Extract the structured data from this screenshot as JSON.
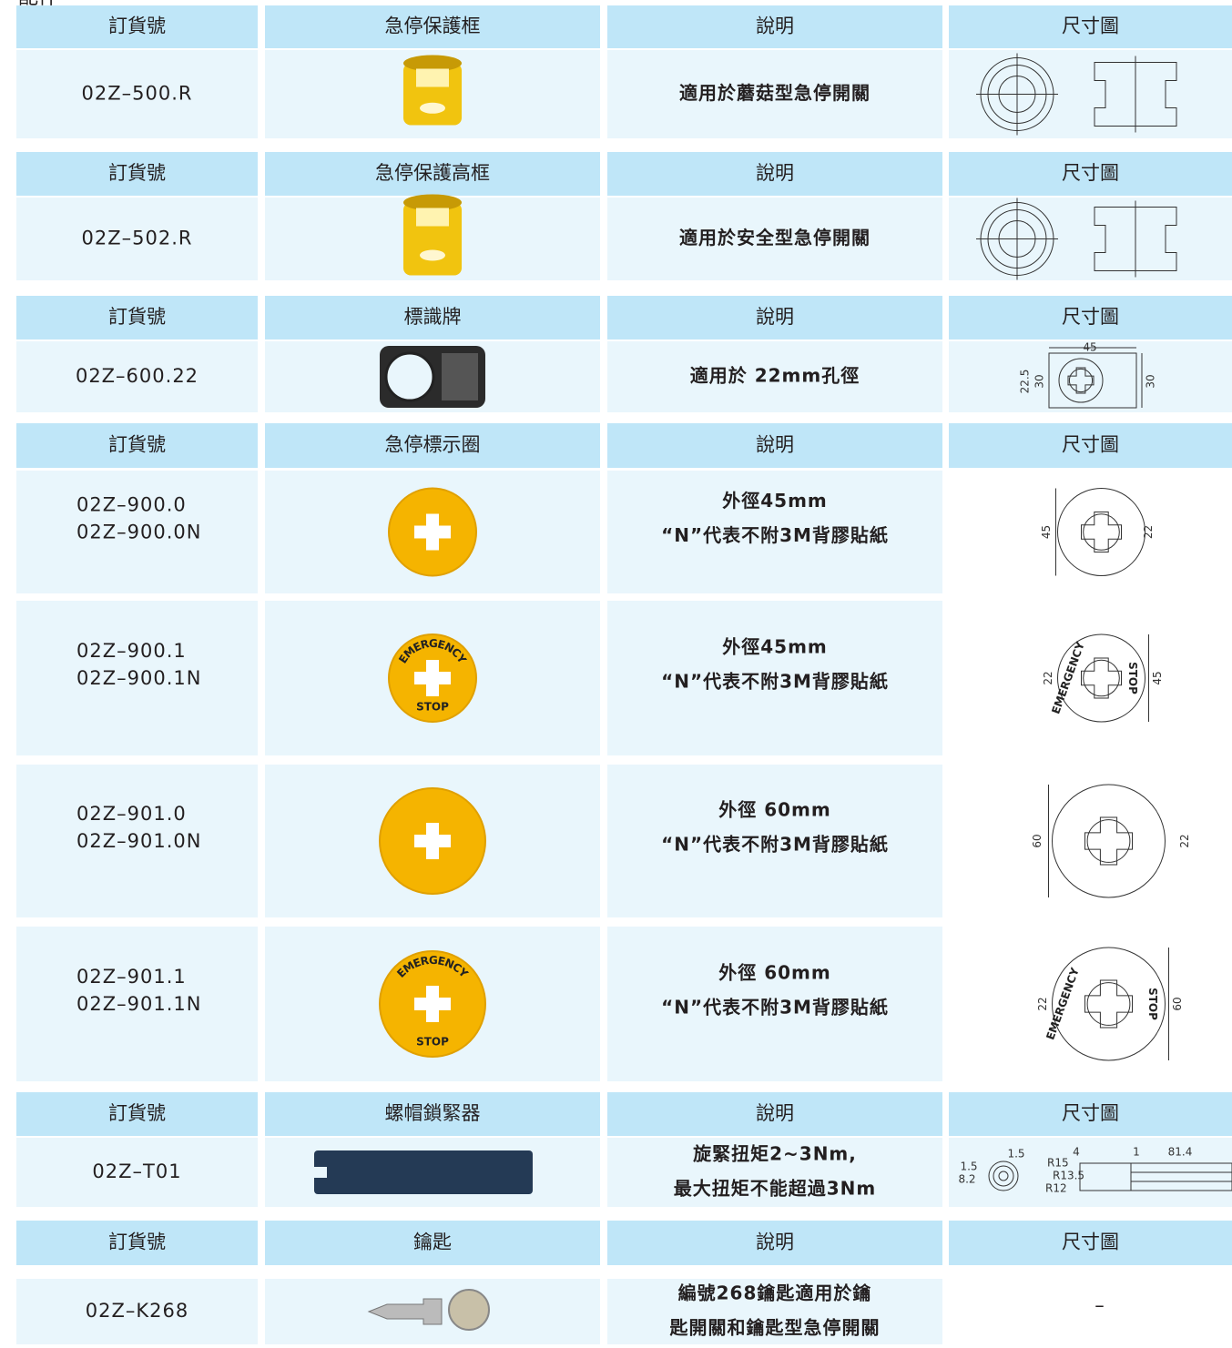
{
  "header": {
    "title": "配件"
  },
  "sections": [
    {
      "headers": [
        "訂貨號",
        "急停保護框",
        "說明",
        "尺寸圖"
      ],
      "rows": [
        {
          "codes": [
            "02Z–500.R"
          ],
          "description": [
            "適用於蘑菇型急停開關"
          ]
        }
      ]
    },
    {
      "headers": [
        "訂貨號",
        "急停保護高框",
        "說明",
        "尺寸圖"
      ],
      "rows": [
        {
          "codes": [
            "02Z–502.R"
          ],
          "description": [
            "適用於安全型急停開關"
          ]
        }
      ]
    },
    {
      "headers": [
        "訂貨號",
        "標識牌",
        "說明",
        "尺寸圖"
      ],
      "rows": [
        {
          "codes": [
            "02Z–600.22"
          ],
          "description": [
            "適用於 22mm孔徑"
          ],
          "drawing_labels": [
            "45",
            "22.5",
            "30",
            "30"
          ]
        }
      ]
    },
    {
      "headers": [
        "訂貨號",
        "急停標示圈",
        "說明",
        "尺寸圖"
      ],
      "rows": [
        {
          "codes": [
            "02Z–900.0",
            "02Z–900.0N"
          ],
          "description": [
            "外徑45mm",
            "“N”代表不附3M背膠貼紙"
          ],
          "drawing_labels": [
            "45",
            "22"
          ]
        },
        {
          "codes": [
            "02Z–900.1",
            "02Z–900.1N"
          ],
          "description": [
            "外徑45mm",
            "“N”代表不附3M背膠貼紙"
          ],
          "photo_labels": [
            "EMERGENCY",
            "STOP"
          ],
          "drawing_labels": [
            "22",
            "EMERGENCY",
            "STOP",
            "45"
          ]
        },
        {
          "codes": [
            "02Z–901.0",
            "02Z–901.0N"
          ],
          "description": [
            "外徑 60mm",
            "“N”代表不附3M背膠貼紙"
          ],
          "drawing_labels": [
            "60",
            "22"
          ]
        },
        {
          "codes": [
            "02Z–901.1",
            "02Z–901.1N"
          ],
          "description": [
            "外徑 60mm",
            "“N”代表不附3M背膠貼紙"
          ],
          "photo_labels": [
            "EMERGENCY",
            "STOP"
          ],
          "drawing_labels": [
            "22",
            "EMERGENCY",
            "STOP",
            "60"
          ]
        }
      ]
    },
    {
      "headers": [
        "訂貨號",
        "螺帽鎖緊器",
        "說明",
        "尺寸圖"
      ],
      "rows": [
        {
          "codes": [
            "02Z–T01"
          ],
          "description": [
            "旋緊扭矩2~3Nm,",
            "最大扭矩不能超過3Nm"
          ],
          "drawing_labels": [
            "1.5",
            "1.5",
            "R15",
            "R13.5",
            "R12",
            "8.2",
            "4",
            "1",
            "81.4"
          ]
        }
      ]
    },
    {
      "headers": [
        "訂貨號",
        "鑰匙",
        "說明",
        "尺寸圖"
      ],
      "rows": [
        {
          "codes": [
            "02Z–K268"
          ],
          "description": [
            "編號268鑰匙適用於鑰",
            "匙開關和鑰匙型急停開關"
          ],
          "drawing_text": "–"
        }
      ]
    }
  ]
}
